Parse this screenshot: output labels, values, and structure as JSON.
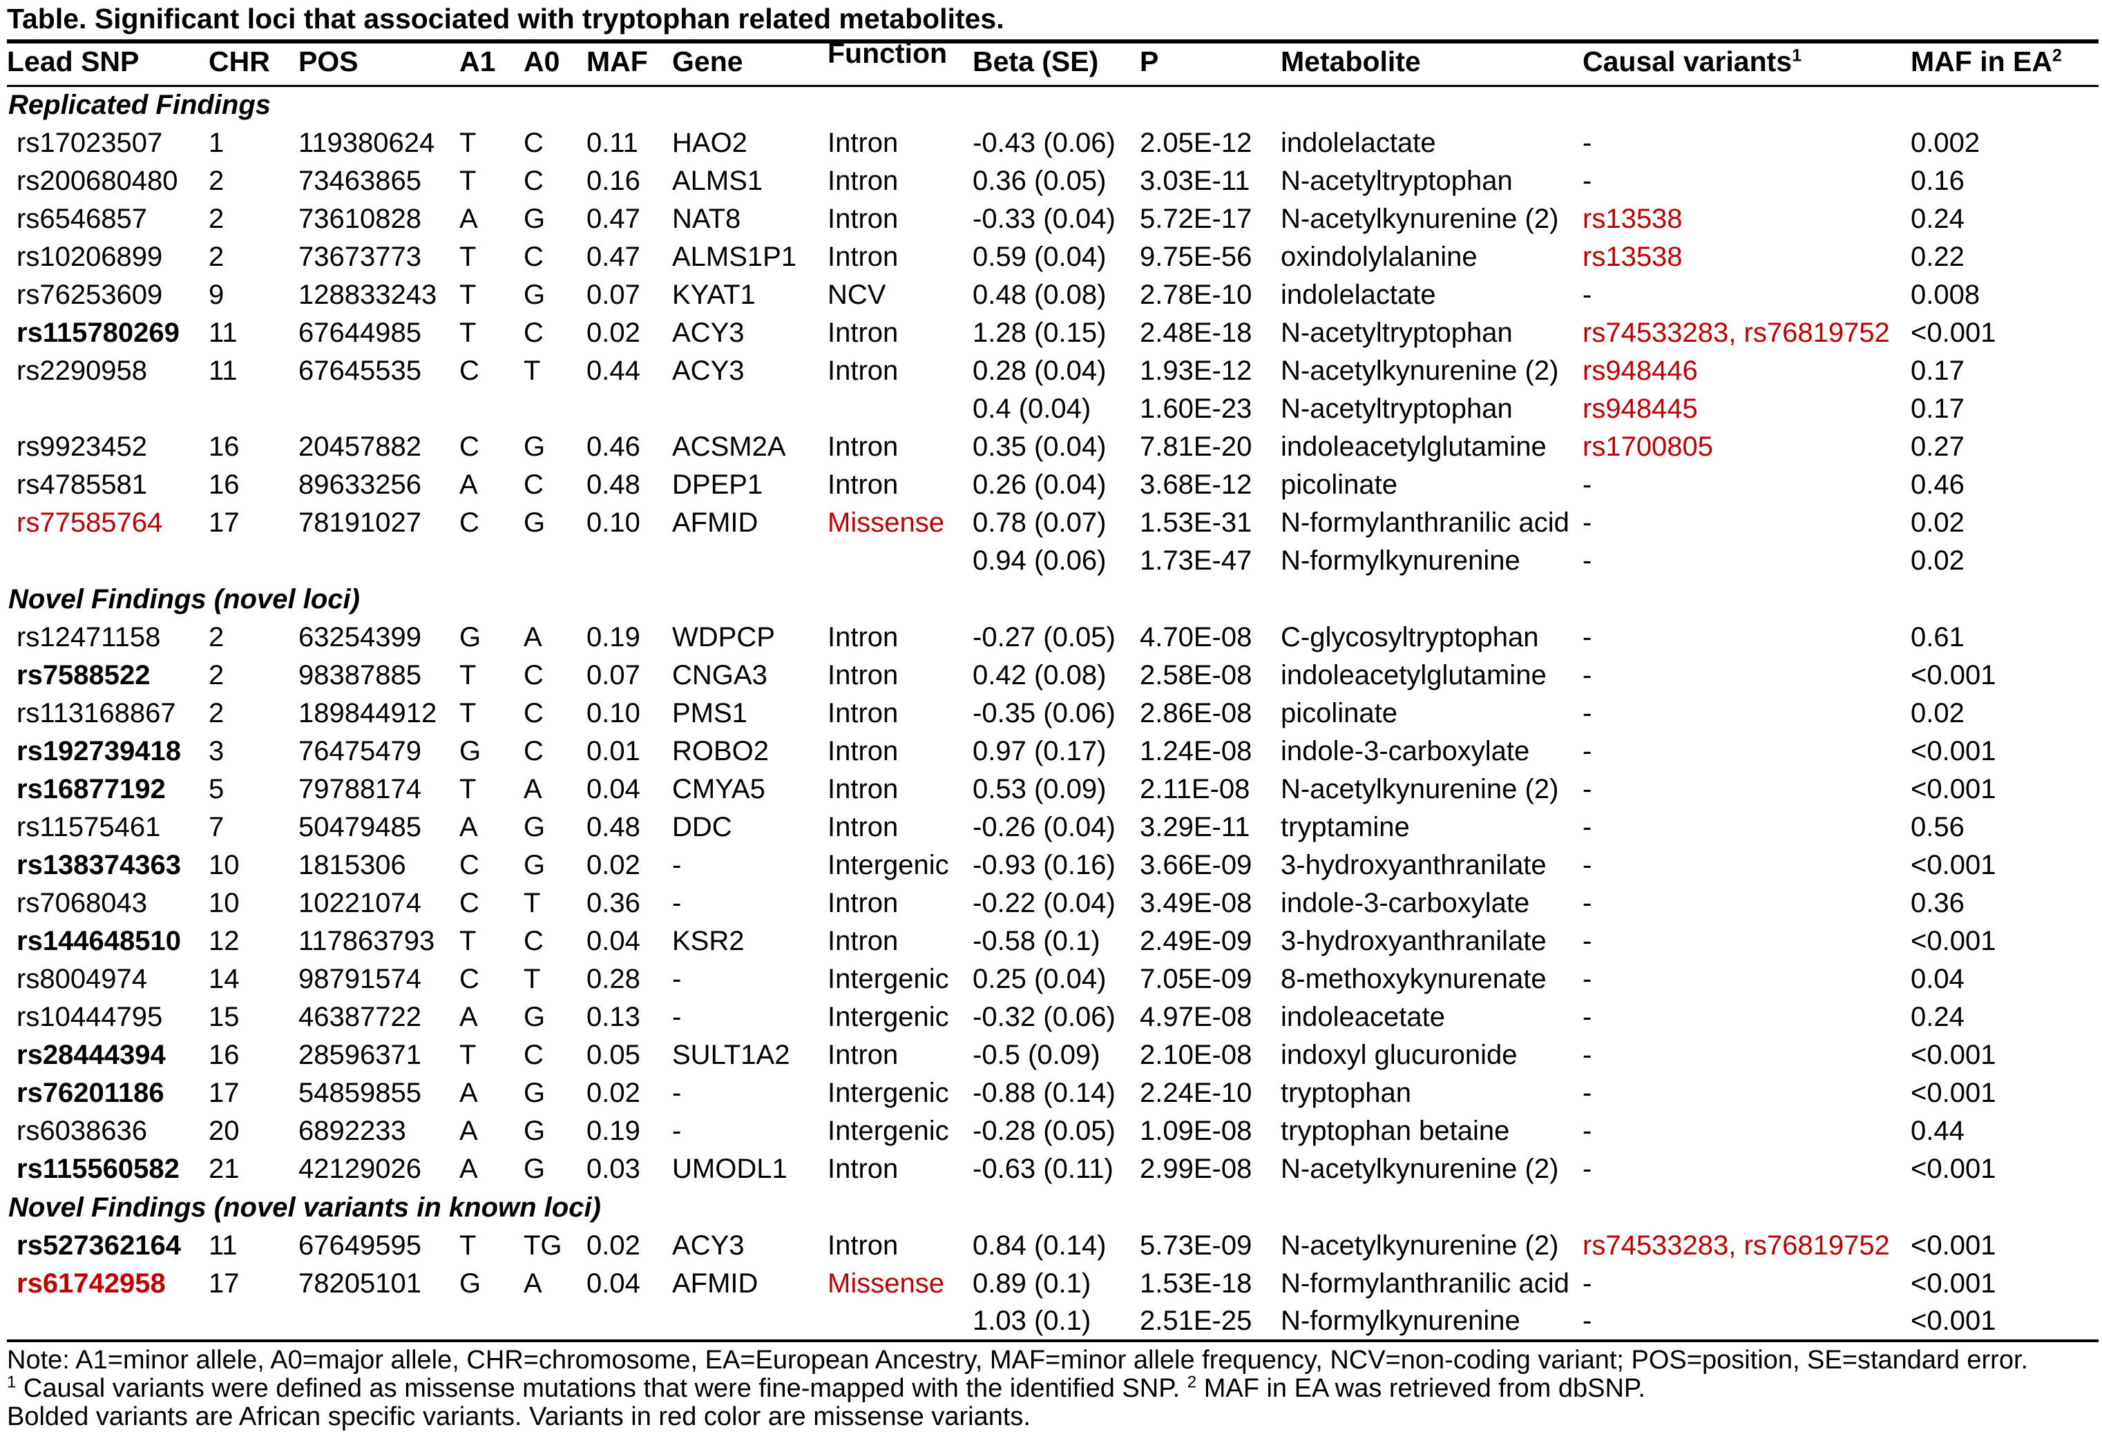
{
  "title": "Table. Significant loci that associated with tryptophan related metabolites.",
  "colors": {
    "red": "#c00000",
    "text": "#000000",
    "background": "#ffffff"
  },
  "columns": [
    {
      "key": "snp",
      "label": "Lead SNP"
    },
    {
      "key": "chr",
      "label": "CHR"
    },
    {
      "key": "pos",
      "label": "POS"
    },
    {
      "key": "a1",
      "label": "A1"
    },
    {
      "key": "a0",
      "label": "A0"
    },
    {
      "key": "maf",
      "label": "MAF"
    },
    {
      "key": "gene",
      "label": "Gene"
    },
    {
      "key": "fn",
      "label": "Function"
    },
    {
      "key": "beta",
      "label": "Beta (SE)"
    },
    {
      "key": "p",
      "label": "P"
    },
    {
      "key": "met",
      "label": "Metabolite"
    },
    {
      "key": "causal",
      "label": "Causal variants",
      "sup": "1"
    },
    {
      "key": "mafea",
      "label": "MAF in EA",
      "sup": "2"
    }
  ],
  "sections": [
    {
      "header": "Replicated Findings",
      "rows": [
        {
          "snp": "rs17023507",
          "chr": "1",
          "pos": "119380624",
          "a1": "T",
          "a0": "C",
          "maf": "0.11",
          "gene": "HAO2",
          "fn": "Intron",
          "beta": "-0.43 (0.06)",
          "p": "2.05E-12",
          "met": "indolelactate",
          "causal": "-",
          "mafea": "0.002"
        },
        {
          "snp": "rs200680480",
          "chr": "2",
          "pos": "73463865",
          "a1": "T",
          "a0": "C",
          "maf": "0.16",
          "gene": "ALMS1",
          "fn": "Intron",
          "beta": "0.36 (0.05)",
          "p": "3.03E-11",
          "met": "N-acetyltryptophan",
          "causal": "-",
          "mafea": "0.16"
        },
        {
          "snp": "rs6546857",
          "chr": "2",
          "pos": "73610828",
          "a1": "A",
          "a0": "G",
          "maf": "0.47",
          "gene": "NAT8",
          "fn": "Intron",
          "beta": "-0.33 (0.04)",
          "p": "5.72E-17",
          "met": "N-acetylkynurenine (2)",
          "causal": "rs13538",
          "causal_red": true,
          "mafea": "0.24"
        },
        {
          "snp": "rs10206899",
          "chr": "2",
          "pos": "73673773",
          "a1": "T",
          "a0": "C",
          "maf": "0.47",
          "gene": "ALMS1P1",
          "fn": "Intron",
          "beta": "0.59 (0.04)",
          "p": "9.75E-56",
          "met": "oxindolylalanine",
          "causal": "rs13538",
          "causal_red": true,
          "mafea": "0.22"
        },
        {
          "snp": "rs76253609",
          "chr": "9",
          "pos": "128833243",
          "a1": "T",
          "a0": "G",
          "maf": "0.07",
          "gene": "KYAT1",
          "fn": "NCV",
          "beta": "0.48 (0.08)",
          "p": "2.78E-10",
          "met": "indolelactate",
          "causal": "-",
          "mafea": "0.008"
        },
        {
          "snp": "rs115780269",
          "snp_bold": true,
          "chr": "11",
          "pos": "67644985",
          "a1": "T",
          "a0": "C",
          "maf": "0.02",
          "gene": "ACY3",
          "fn": "Intron",
          "beta": "1.28 (0.15)",
          "p": "2.48E-18",
          "met": "N-acetyltryptophan",
          "causal": "rs74533283, rs76819752",
          "causal_red": true,
          "mafea": "<0.001"
        },
        {
          "snp": "rs2290958",
          "chr": "11",
          "pos": "67645535",
          "a1": "C",
          "a0": "T",
          "maf": "0.44",
          "gene": "ACY3",
          "fn": "Intron",
          "beta": "0.28 (0.04)",
          "p": "1.93E-12",
          "met": "N-acetylkynurenine (2)",
          "causal": "rs948446",
          "causal_red": true,
          "mafea": "0.17"
        },
        {
          "snp": "",
          "chr": "",
          "pos": "",
          "a1": "",
          "a0": "",
          "maf": "",
          "gene": "",
          "fn": "",
          "beta": "0.4 (0.04)",
          "p": "1.60E-23",
          "met": "N-acetyltryptophan",
          "causal": "rs948445",
          "causal_red": true,
          "mafea": "0.17"
        },
        {
          "snp": "rs9923452",
          "chr": "16",
          "pos": "20457882",
          "a1": "C",
          "a0": "G",
          "maf": "0.46",
          "gene": "ACSM2A",
          "fn": "Intron",
          "beta": "0.35 (0.04)",
          "p": "7.81E-20",
          "met": "indoleacetylglutamine",
          "causal": "rs1700805",
          "causal_red": true,
          "mafea": "0.27"
        },
        {
          "snp": "rs4785581",
          "chr": "16",
          "pos": "89633256",
          "a1": "A",
          "a0": "C",
          "maf": "0.48",
          "gene": "DPEP1",
          "fn": "Intron",
          "beta": "0.26 (0.04)",
          "p": "3.68E-12",
          "met": "picolinate",
          "causal": "-",
          "mafea": "0.46"
        },
        {
          "snp": "rs77585764",
          "snp_red": true,
          "chr": "17",
          "pos": "78191027",
          "a1": "C",
          "a0": "G",
          "maf": "0.10",
          "gene": "AFMID",
          "fn": "Missense",
          "fn_red": true,
          "beta": "0.78 (0.07)",
          "p": "1.53E-31",
          "met": "N-formylanthranilic acid",
          "causal": "-",
          "mafea": "0.02"
        },
        {
          "snp": "",
          "chr": "",
          "pos": "",
          "a1": "",
          "a0": "",
          "maf": "",
          "gene": "",
          "fn": "",
          "beta": "0.94 (0.06)",
          "p": "1.73E-47",
          "met": "N-formylkynurenine",
          "causal": "-",
          "mafea": "0.02"
        }
      ]
    },
    {
      "header": "Novel Findings (novel loci)",
      "rows": [
        {
          "snp": "rs12471158",
          "chr": "2",
          "pos": "63254399",
          "a1": "G",
          "a0": "A",
          "maf": "0.19",
          "gene": "WDPCP",
          "fn": "Intron",
          "beta": "-0.27 (0.05)",
          "p": "4.70E-08",
          "met": "C-glycosyltryptophan",
          "causal": "-",
          "mafea": "0.61"
        },
        {
          "snp": "rs7588522",
          "snp_bold": true,
          "chr": "2",
          "pos": "98387885",
          "a1": "T",
          "a0": "C",
          "maf": "0.07",
          "gene": "CNGA3",
          "fn": "Intron",
          "beta": "0.42 (0.08)",
          "p": "2.58E-08",
          "met": "indoleacetylglutamine",
          "causal": "-",
          "mafea": "<0.001"
        },
        {
          "snp": "rs113168867",
          "chr": "2",
          "pos": "189844912",
          "a1": "T",
          "a0": "C",
          "maf": "0.10",
          "gene": "PMS1",
          "fn": "Intron",
          "beta": "-0.35 (0.06)",
          "p": "2.86E-08",
          "met": "picolinate",
          "causal": "-",
          "mafea": "0.02"
        },
        {
          "snp": "rs192739418",
          "snp_bold": true,
          "chr": "3",
          "pos": "76475479",
          "a1": "G",
          "a0": "C",
          "maf": "0.01",
          "gene": "ROBO2",
          "fn": "Intron",
          "beta": "0.97 (0.17)",
          "p": "1.24E-08",
          "met": "indole-3-carboxylate",
          "causal": "-",
          "mafea": "<0.001"
        },
        {
          "snp": "rs16877192",
          "snp_bold": true,
          "chr": "5",
          "pos": "79788174",
          "a1": "T",
          "a0": "A",
          "maf": "0.04",
          "gene": "CMYA5",
          "fn": "Intron",
          "beta": "0.53 (0.09)",
          "p": "2.11E-08",
          "met": "N-acetylkynurenine (2)",
          "causal": "-",
          "mafea": "<0.001"
        },
        {
          "snp": "rs11575461",
          "chr": "7",
          "pos": "50479485",
          "a1": "A",
          "a0": "G",
          "maf": "0.48",
          "gene": "DDC",
          "fn": "Intron",
          "beta": "-0.26 (0.04)",
          "p": "3.29E-11",
          "met": "tryptamine",
          "causal": "-",
          "mafea": "0.56"
        },
        {
          "snp": "rs138374363",
          "snp_bold": true,
          "chr": "10",
          "pos": "1815306",
          "a1": "C",
          "a0": "G",
          "maf": "0.02",
          "gene": "-",
          "fn": "Intergenic",
          "beta": "-0.93 (0.16)",
          "p": "3.66E-09",
          "met": "3-hydroxyanthranilate",
          "causal": "-",
          "mafea": "<0.001"
        },
        {
          "snp": "rs7068043",
          "chr": "10",
          "pos": "10221074",
          "a1": "C",
          "a0": "T",
          "maf": "0.36",
          "gene": "-",
          "fn": "Intron",
          "beta": "-0.22 (0.04)",
          "p": "3.49E-08",
          "met": "indole-3-carboxylate",
          "causal": "-",
          "mafea": "0.36"
        },
        {
          "snp": "rs144648510",
          "snp_bold": true,
          "chr": "12",
          "pos": "117863793",
          "a1": "T",
          "a0": "C",
          "maf": "0.04",
          "gene": "KSR2",
          "fn": "Intron",
          "beta": "-0.58 (0.1)",
          "p": "2.49E-09",
          "met": "3-hydroxyanthranilate",
          "causal": "-",
          "mafea": "<0.001"
        },
        {
          "snp": "rs8004974",
          "chr": "14",
          "pos": "98791574",
          "a1": "C",
          "a0": "T",
          "maf": "0.28",
          "gene": "-",
          "fn": "Intergenic",
          "beta": "0.25 (0.04)",
          "p": "7.05E-09",
          "met": "8-methoxykynurenate",
          "causal": "-",
          "mafea": "0.04"
        },
        {
          "snp": "rs10444795",
          "chr": "15",
          "pos": "46387722",
          "a1": "A",
          "a0": "G",
          "maf": "0.13",
          "gene": "-",
          "fn": "Intergenic",
          "beta": "-0.32 (0.06)",
          "p": "4.97E-08",
          "met": "indoleacetate",
          "causal": "-",
          "mafea": "0.24"
        },
        {
          "snp": "rs28444394",
          "snp_bold": true,
          "chr": "16",
          "pos": "28596371",
          "a1": "T",
          "a0": "C",
          "maf": "0.05",
          "gene": "SULT1A2",
          "fn": "Intron",
          "beta": "-0.5 (0.09)",
          "p": "2.10E-08",
          "met": "indoxyl glucuronide",
          "causal": "-",
          "mafea": "<0.001"
        },
        {
          "snp": "rs76201186",
          "snp_bold": true,
          "chr": "17",
          "pos": "54859855",
          "a1": "A",
          "a0": "G",
          "maf": "0.02",
          "gene": "-",
          "fn": "Intergenic",
          "beta": "-0.88 (0.14)",
          "p": "2.24E-10",
          "met": "tryptophan",
          "causal": "-",
          "mafea": "<0.001"
        },
        {
          "snp": "rs6038636",
          "chr": "20",
          "pos": "6892233",
          "a1": "A",
          "a0": "G",
          "maf": "0.19",
          "gene": "-",
          "fn": "Intergenic",
          "beta": "-0.28 (0.05)",
          "p": "1.09E-08",
          "met": "tryptophan betaine",
          "causal": "-",
          "mafea": "0.44"
        },
        {
          "snp": "rs115560582",
          "snp_bold": true,
          "chr": "21",
          "pos": "42129026",
          "a1": "A",
          "a0": "G",
          "maf": "0.03",
          "gene": "UMODL1",
          "fn": "Intron",
          "beta": "-0.63 (0.11)",
          "p": "2.99E-08",
          "met": "N-acetylkynurenine (2)",
          "causal": "-",
          "mafea": "<0.001"
        }
      ]
    },
    {
      "header": "Novel Findings (novel variants in known loci)",
      "rows": [
        {
          "snp": "rs527362164",
          "snp_bold": true,
          "chr": "11",
          "pos": "67649595",
          "a1": "T",
          "a0": "TG",
          "maf": "0.02",
          "gene": "ACY3",
          "fn": "Intron",
          "beta": "0.84 (0.14)",
          "p": "5.73E-09",
          "met": "N-acetylkynurenine (2)",
          "causal": "rs74533283, rs76819752",
          "causal_red": true,
          "mafea": "<0.001"
        },
        {
          "snp": "rs61742958",
          "snp_bold": true,
          "snp_red": true,
          "chr": "17",
          "pos": "78205101",
          "a1": "G",
          "a0": "A",
          "maf": "0.04",
          "gene": "AFMID",
          "fn": "Missense",
          "fn_red": true,
          "beta": "0.89 (0.1)",
          "p": "1.53E-18",
          "met": "N-formylanthranilic acid",
          "causal": "-",
          "mafea": "<0.001"
        },
        {
          "snp": "",
          "chr": "",
          "pos": "",
          "a1": "",
          "a0": "",
          "maf": "",
          "gene": "",
          "fn": "",
          "beta": "1.03 (0.1)",
          "p": "2.51E-25",
          "met": "N-formylkynurenine",
          "causal": "-",
          "mafea": "<0.001"
        }
      ]
    }
  ],
  "notes": [
    {
      "segments": [
        {
          "text": "Note: A1=minor allele, A0=major allele, CHR=chromosome, EA=European Ancestry, MAF=minor allele frequency, NCV=non-coding variant; POS=position, SE=standard error."
        }
      ]
    },
    {
      "segments": [
        {
          "sup": "1"
        },
        {
          "text": " Causal variants were defined as missense mutations that were fine-mapped with the identified SNP. "
        },
        {
          "sup": "2"
        },
        {
          "text": " MAF in EA was retrieved from dbSNP."
        }
      ]
    },
    {
      "segments": [
        {
          "text": "Bolded variants are African specific variants. Variants in red color are missense variants."
        }
      ]
    }
  ]
}
